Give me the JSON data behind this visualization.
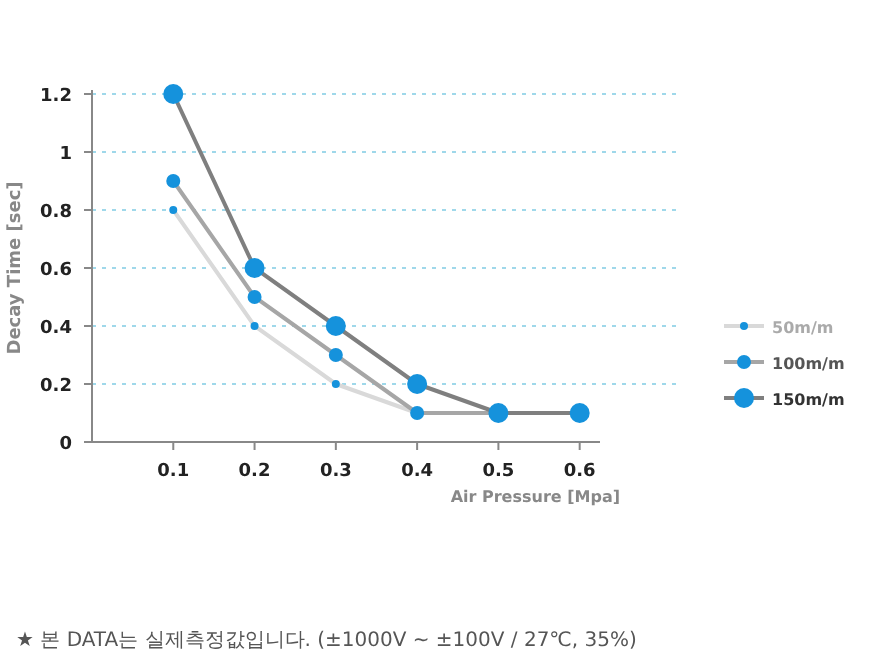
{
  "chart_data": {
    "type": "line",
    "xlabel": "Air Pressure [Mpa]",
    "ylabel": "Decay Time [sec]",
    "x": [
      0.1,
      0.2,
      0.3,
      0.4,
      0.5,
      0.6
    ],
    "xlim": [
      0,
      0.625
    ],
    "xticks": [
      0.1,
      0.2,
      0.3,
      0.4,
      0.5,
      0.6
    ],
    "ylim": [
      0,
      1.2
    ],
    "yticks": [
      0,
      0.2,
      0.4,
      0.6,
      0.8,
      1,
      1.2
    ],
    "grid": "y",
    "legend": "right",
    "marker": "circle",
    "line_style": "solid",
    "series": [
      {
        "name": "50m/m",
        "color": "#d9d9d9",
        "values": [
          0.8,
          0.4,
          0.2,
          0.1,
          null,
          null
        ]
      },
      {
        "name": "100m/m",
        "color": "#a6a6a6",
        "values": [
          0.9,
          0.5,
          0.3,
          0.1,
          0.1,
          0.1
        ]
      },
      {
        "name": "150m/m",
        "color": "#7f7f7f",
        "values": [
          1.2,
          0.6,
          0.4,
          0.2,
          0.1,
          0.1
        ]
      }
    ],
    "annotations": [
      "★ 본 DATA는 실제측정값입니다. (±1000V ~ ±100V / 27℃, 35%)"
    ]
  }
}
